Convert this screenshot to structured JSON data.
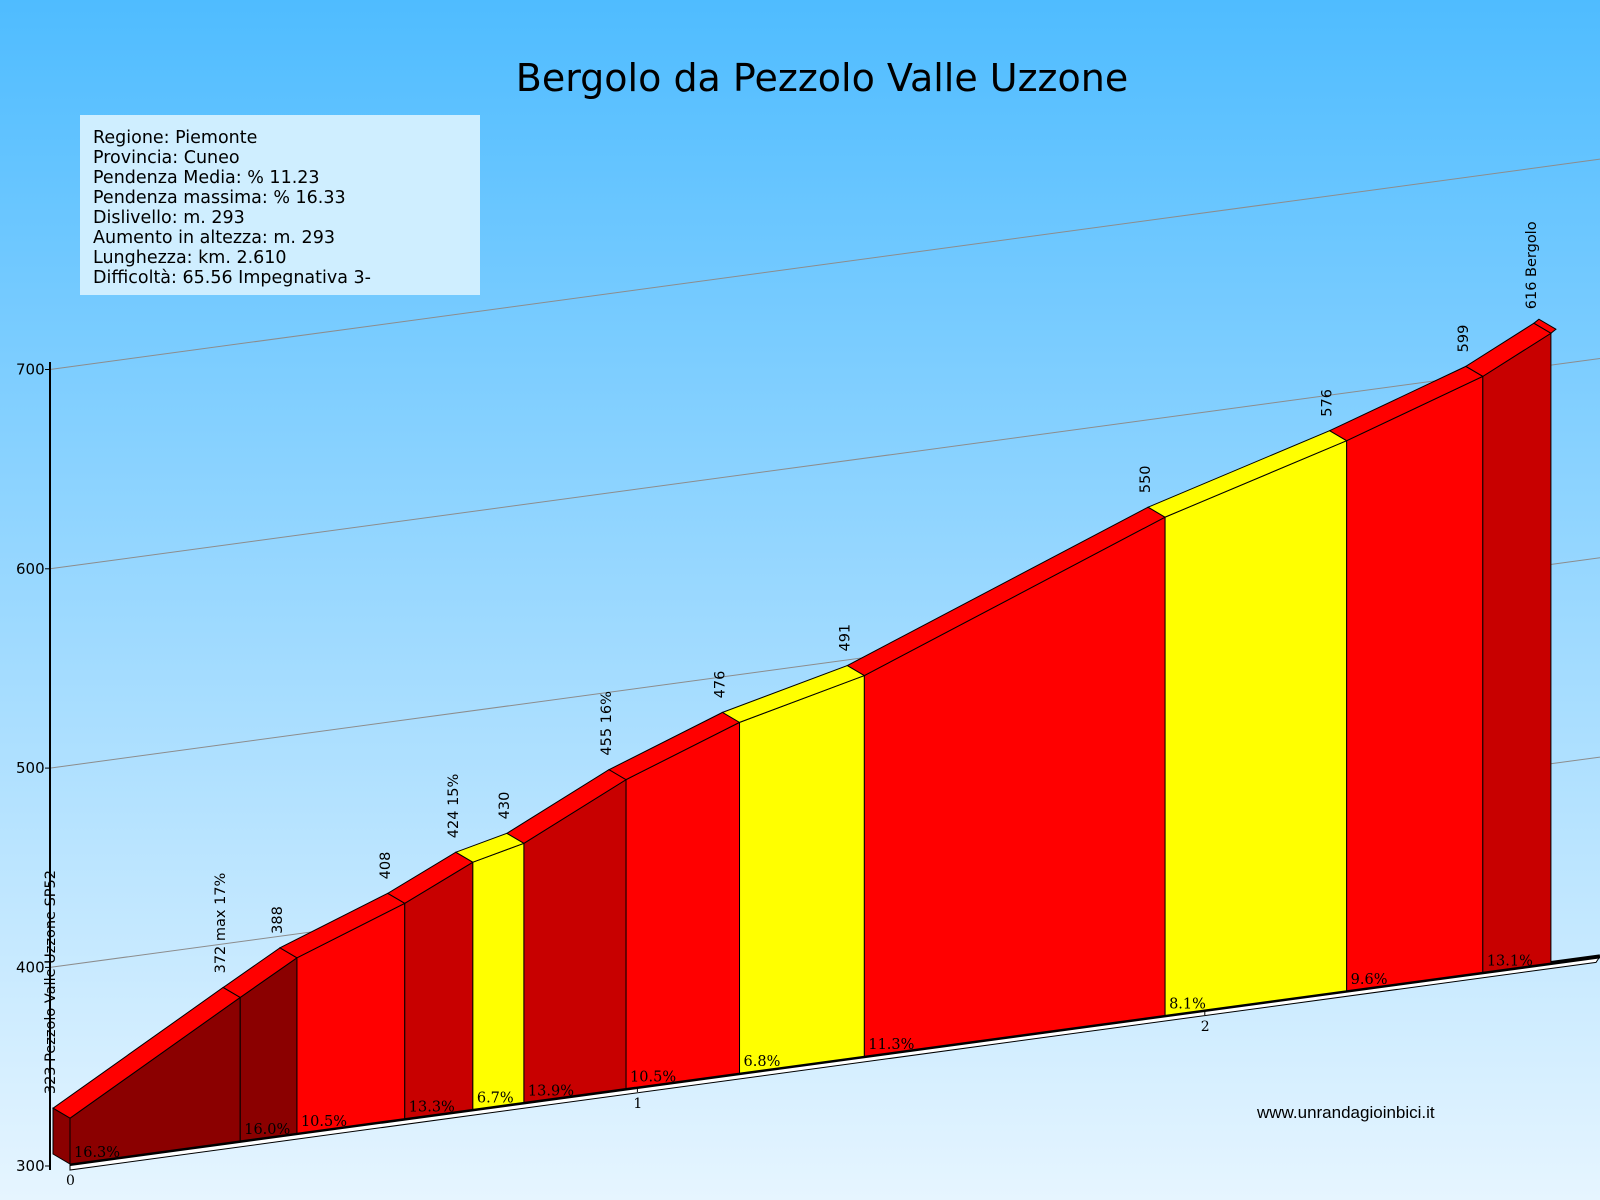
{
  "chart_data": {
    "type": "area",
    "title": "Bergolo da Pezzolo  Valle Uzzone",
    "info": [
      "Regione: Piemonte",
      "Provincia: Cuneo",
      "Pendenza Media: % 11.23",
      "Pendenza massima: % 16.33",
      "Dislivello:    m. 293",
      "Aumento in altezza:    m. 293",
      "Lunghezza:   km. 2.610",
      "Difficoltà: 65.56 Impegnativa 3-"
    ],
    "website": "www.unrandagioinbici.it",
    "ylim": [
      300,
      700
    ],
    "yticks": [
      300,
      400,
      500,
      600,
      700
    ],
    "xlim": [
      0,
      2.61
    ],
    "xticks": [
      0,
      1,
      2
    ],
    "segments": [
      {
        "start_km": 0.0,
        "end_km": 0.3,
        "start_elev": 323,
        "end_elev": 372,
        "grade": "16.3%",
        "color": "#8b0000"
      },
      {
        "start_km": 0.3,
        "end_km": 0.4,
        "start_elev": 372,
        "end_elev": 388,
        "grade": "16.0%",
        "color": "#8b0000"
      },
      {
        "start_km": 0.4,
        "end_km": 0.59,
        "start_elev": 388,
        "end_elev": 408,
        "grade": "10.5%",
        "color": "#ff0000"
      },
      {
        "start_km": 0.59,
        "end_km": 0.71,
        "start_elev": 408,
        "end_elev": 424,
        "grade": "13.3%",
        "color": "#c80000"
      },
      {
        "start_km": 0.71,
        "end_km": 0.8,
        "start_elev": 424,
        "end_elev": 430,
        "grade": "6.7%",
        "color": "#ffff00"
      },
      {
        "start_km": 0.8,
        "end_km": 0.98,
        "start_elev": 430,
        "end_elev": 455,
        "grade": "13.9%",
        "color": "#c80000"
      },
      {
        "start_km": 0.98,
        "end_km": 1.18,
        "start_elev": 455,
        "end_elev": 476,
        "grade": "10.5%",
        "color": "#ff0000"
      },
      {
        "start_km": 1.18,
        "end_km": 1.4,
        "start_elev": 476,
        "end_elev": 491,
        "grade": "6.8%",
        "color": "#ffff00"
      },
      {
        "start_km": 1.4,
        "end_km": 1.93,
        "start_elev": 491,
        "end_elev": 550,
        "grade": "11.3%",
        "color": "#ff0000"
      },
      {
        "start_km": 1.93,
        "end_km": 2.25,
        "start_elev": 550,
        "end_elev": 576,
        "grade": "8.1%",
        "color": "#ffff00"
      },
      {
        "start_km": 2.25,
        "end_km": 2.49,
        "start_elev": 576,
        "end_elev": 599,
        "grade": "9.6%",
        "color": "#ff0000"
      },
      {
        "start_km": 2.49,
        "end_km": 2.61,
        "start_elev": 599,
        "end_elev": 616,
        "grade": "13.1%",
        "color": "#c80000"
      }
    ],
    "points": [
      {
        "km": 0.0,
        "label": "323 Pezzolo Valle Uzzone SP52"
      },
      {
        "km": 0.3,
        "label": "372 max 17%"
      },
      {
        "km": 0.4,
        "label": "388"
      },
      {
        "km": 0.59,
        "label": "408"
      },
      {
        "km": 0.71,
        "label": "424 15%"
      },
      {
        "km": 0.8,
        "label": "430"
      },
      {
        "km": 0.98,
        "label": "455 16%"
      },
      {
        "km": 1.18,
        "label": "476"
      },
      {
        "km": 1.4,
        "label": "491"
      },
      {
        "km": 1.93,
        "label": "550"
      },
      {
        "km": 2.25,
        "label": "576"
      },
      {
        "km": 2.49,
        "label": "599"
      },
      {
        "km": 2.61,
        "label": "616 Bergolo"
      }
    ],
    "colors": {
      "sky_top": "#4fbcff",
      "sky_bottom": "#e6f5ff",
      "dark_red": "#8b0000",
      "mid_red": "#c80000",
      "red": "#ff0000",
      "yellow": "#ffff00"
    }
  }
}
